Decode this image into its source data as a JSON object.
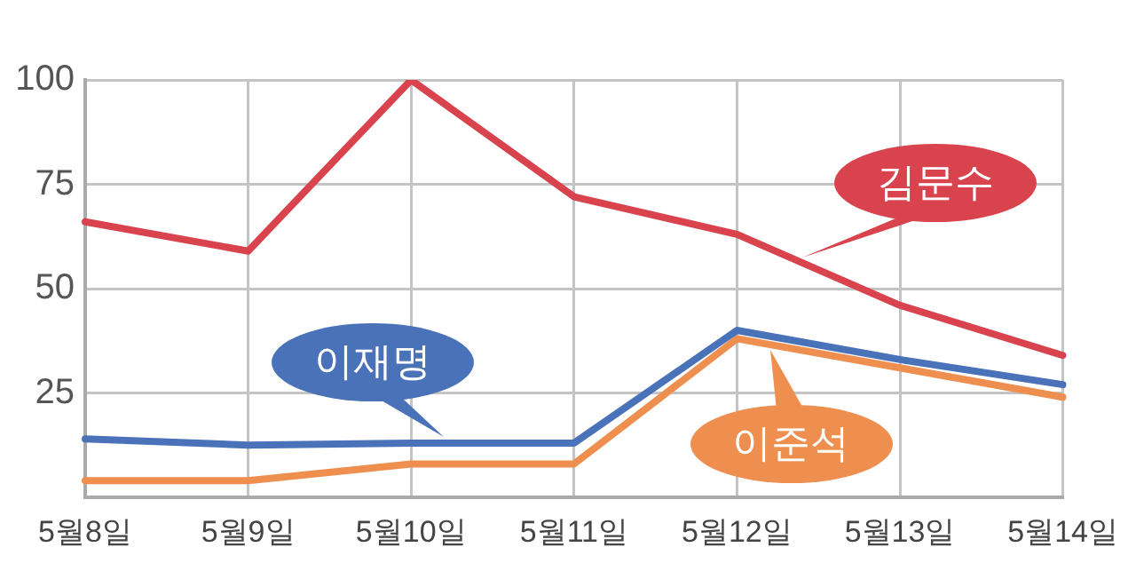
{
  "chart_data": {
    "type": "line",
    "categories": [
      "5월8일",
      "5월9일",
      "5월10일",
      "5월11일",
      "5월12일",
      "5월13일",
      "5월14일"
    ],
    "series": [
      {
        "name": "김문수",
        "color": "#d9434e",
        "values": [
          66,
          59,
          100,
          72,
          63,
          46,
          34
        ]
      },
      {
        "name": "이재명",
        "color": "#4a72b8",
        "values": [
          14,
          12.5,
          13,
          13,
          40,
          33,
          27
        ]
      },
      {
        "name": "이준석",
        "color": "#ee8f4f",
        "values": [
          4,
          4,
          8,
          8,
          38,
          31,
          24
        ]
      }
    ],
    "ylim": [
      0,
      100
    ],
    "yticks": [
      25,
      50,
      75,
      100
    ],
    "grid": true,
    "marker": "none",
    "line_style": "solid"
  }
}
